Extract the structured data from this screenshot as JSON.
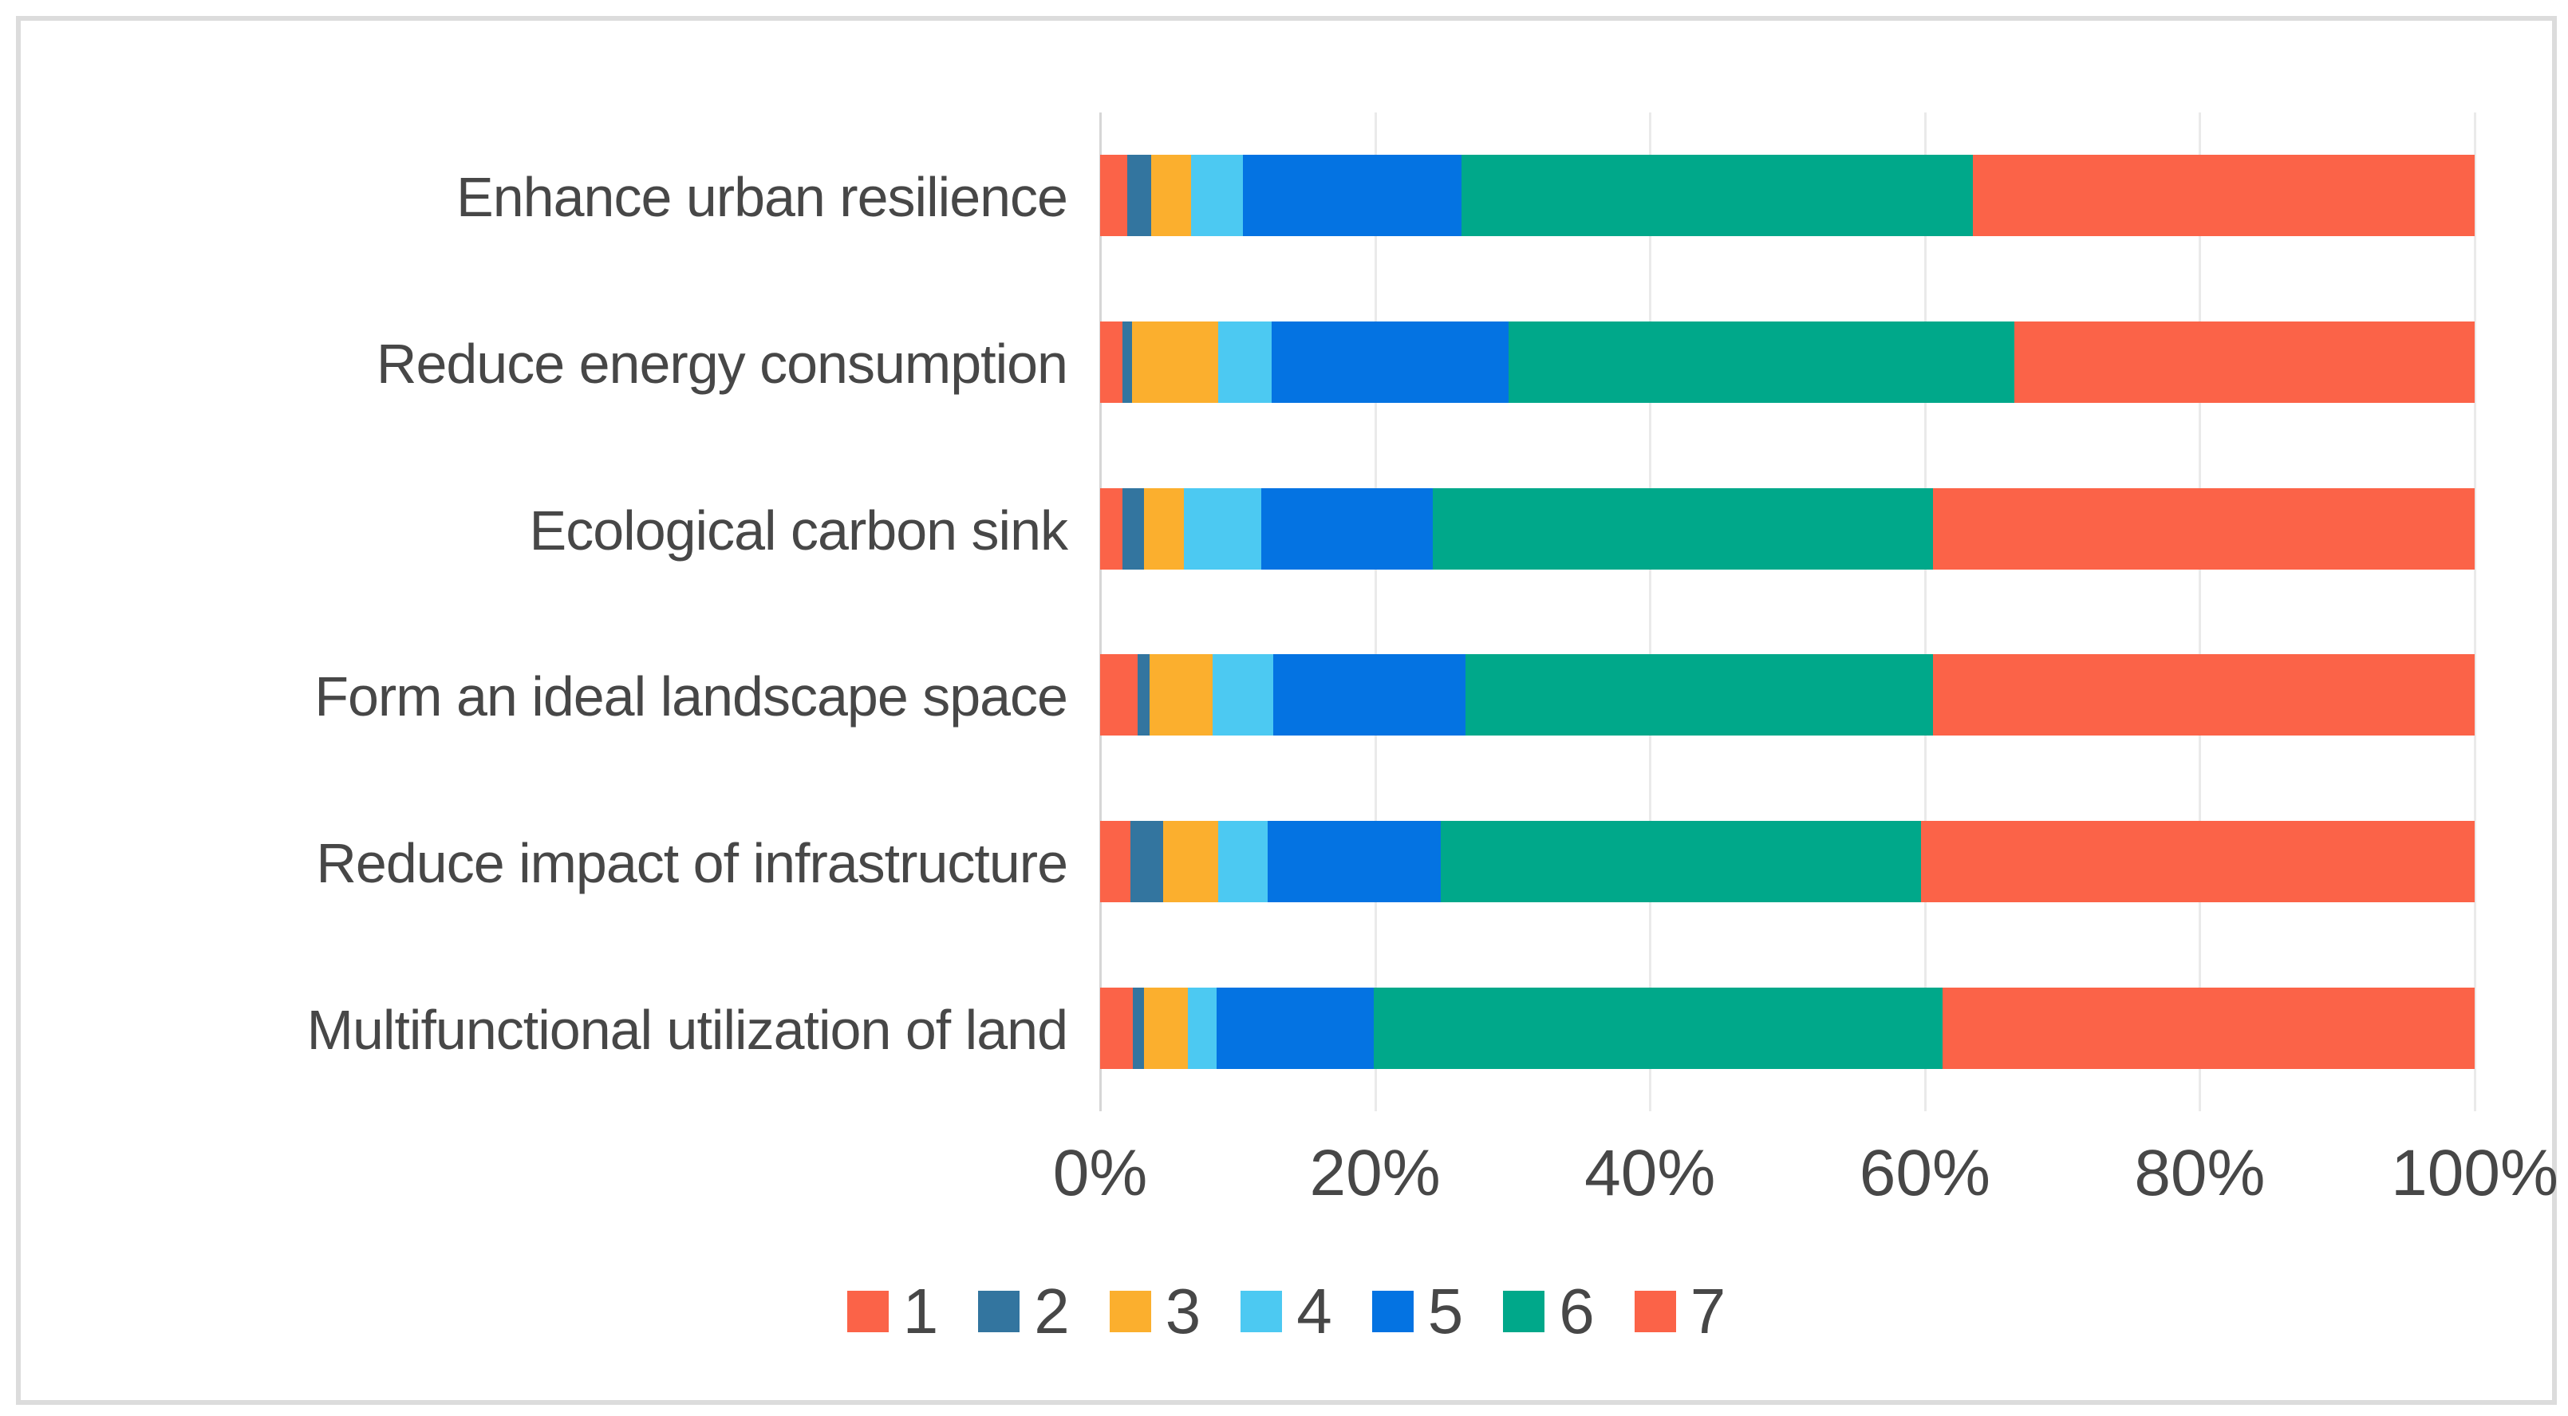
{
  "figure": {
    "description": "100% stacked horizontal bar chart of 7-point rating distribution per objective",
    "title": ""
  },
  "colors": {
    "background": "#ffffff",
    "frame_border": "#dcdcdc",
    "axis_line": "#d6d6d6",
    "gridline": "#eaeaea",
    "text": "#474747"
  },
  "chart_data": {
    "type": "bar",
    "orientation": "horizontal",
    "stacked": true,
    "stacked_total": 100,
    "grid": "vertical",
    "legend_position": "bottom",
    "xlabel": "",
    "ylabel": "",
    "xlim": [
      0,
      100
    ],
    "xticks": [
      "0%",
      "20%",
      "40%",
      "60%",
      "80%",
      "100%"
    ],
    "xtick_values": [
      0,
      20,
      40,
      60,
      80,
      100
    ],
    "categories": [
      "Enhance urban resilience",
      "Reduce energy consumption",
      "Ecological carbon sink",
      "Form an ideal landscape space",
      "Reduce impact of infrastructure",
      "Multifunctional utilization of land"
    ],
    "series": [
      {
        "name": "1",
        "color": "#fb6348",
        "values": [
          2.0,
          1.6,
          1.6,
          2.7,
          2.2,
          2.4
        ]
      },
      {
        "name": "2",
        "color": "#33759f",
        "values": [
          1.7,
          0.7,
          1.6,
          0.9,
          2.4,
          0.8
        ]
      },
      {
        "name": "3",
        "color": "#fbaf2e",
        "values": [
          2.9,
          6.3,
          2.9,
          4.6,
          4.0,
          3.2
        ]
      },
      {
        "name": "4",
        "color": "#4cc9f2",
        "values": [
          3.8,
          3.9,
          5.6,
          4.4,
          3.6,
          2.1
        ]
      },
      {
        "name": "5",
        "color": "#0473e2",
        "values": [
          15.9,
          17.2,
          12.5,
          14.0,
          12.6,
          11.4
        ]
      },
      {
        "name": "6",
        "color": "#00a88a",
        "values": [
          37.2,
          36.8,
          36.4,
          34.0,
          34.9,
          41.4
        ]
      },
      {
        "name": "7",
        "color": "#fb6348",
        "values": [
          36.5,
          33.5,
          39.4,
          39.4,
          40.3,
          38.7
        ]
      }
    ],
    "legend_labels": [
      "1",
      "2",
      "3",
      "4",
      "5",
      "6",
      "7"
    ]
  }
}
